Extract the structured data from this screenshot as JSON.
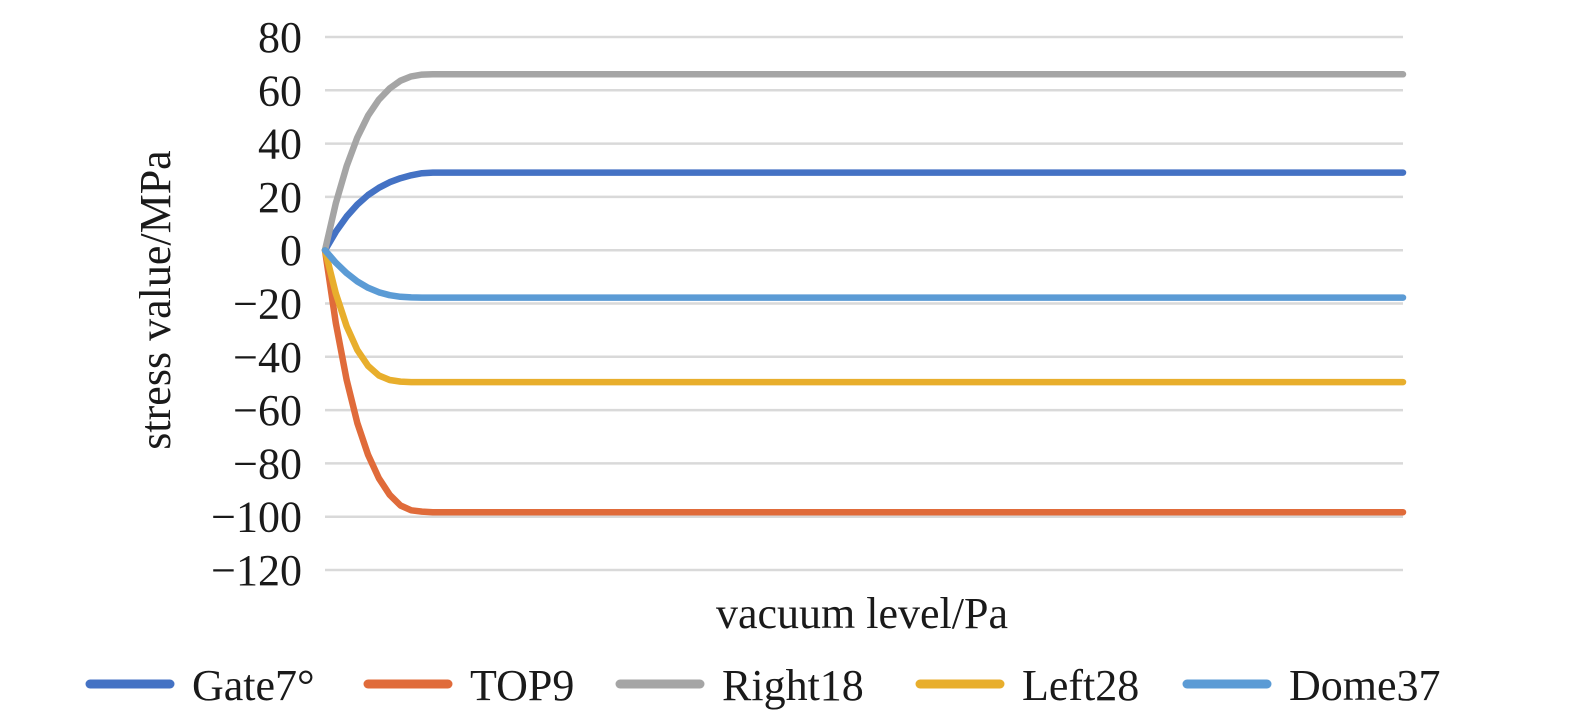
{
  "chart_data": {
    "type": "line",
    "title": "",
    "xlabel": "vacuum level/Pa",
    "ylabel": "stress value/MPa",
    "ylim": [
      -120,
      80
    ],
    "yticks": [
      80,
      60,
      40,
      20,
      0,
      -20,
      -40,
      -60,
      -80,
      -100,
      -120
    ],
    "ytick_labels": [
      "80",
      "60",
      "40",
      "20",
      "0",
      "−20",
      "−40",
      "−60",
      "−80",
      "−100",
      "−120"
    ],
    "grid": true,
    "legend_position": "bottom",
    "x": [
      0,
      1,
      2,
      3,
      4,
      5,
      6,
      7,
      8,
      9,
      10,
      11,
      12,
      13,
      14,
      15,
      16,
      17,
      18,
      19,
      20,
      21,
      22,
      23,
      24,
      25,
      26,
      27,
      28,
      29,
      30,
      31,
      32,
      33,
      34,
      35,
      36,
      37,
      38,
      39,
      40,
      41,
      42,
      43,
      44,
      45,
      46,
      47,
      48,
      49,
      50,
      51,
      52,
      53,
      54,
      55,
      56,
      57,
      58,
      59,
      60,
      61,
      62,
      63,
      64,
      65,
      66,
      67,
      68,
      69,
      70,
      71,
      72,
      73,
      74,
      75,
      76,
      77,
      78,
      79,
      80,
      81,
      82,
      83,
      84,
      85,
      86,
      87,
      88,
      89,
      90,
      91,
      92,
      93,
      94,
      95,
      96,
      97,
      98,
      99,
      100
    ],
    "series": [
      {
        "name": "Gate7°",
        "color": "#4472c4",
        "values": [
          0,
          6.9,
          12.6,
          17.1,
          20.7,
          23.4,
          25.5,
          27,
          28.1,
          28.9,
          29.1,
          29.1,
          29.1,
          29.1,
          29.1,
          29.1,
          29.1,
          29.1,
          29.1,
          29.1,
          29.1,
          29.1,
          29.1,
          29.1,
          29.1,
          29.1,
          29.1,
          29.1,
          29.1,
          29.1,
          29.1,
          29.1,
          29.1,
          29.1,
          29.1,
          29.1,
          29.1,
          29.1,
          29.1,
          29.1,
          29.1,
          29.1,
          29.1,
          29.1,
          29.1,
          29.1,
          29.1,
          29.1,
          29.1,
          29.1,
          29.1,
          29.1,
          29.1,
          29.1,
          29.1,
          29.1,
          29.1,
          29.1,
          29.1,
          29.1,
          29.1,
          29.1,
          29.1,
          29.1,
          29.1,
          29.1,
          29.1,
          29.1,
          29.1,
          29.1,
          29.1,
          29.1,
          29.1,
          29.1,
          29.1,
          29.1,
          29.1,
          29.1,
          29.1,
          29.1,
          29.1,
          29.1,
          29.1,
          29.1,
          29.1,
          29.1,
          29.1,
          29.1,
          29.1,
          29.1,
          29.1,
          29.1,
          29.1,
          29.1,
          29.1,
          29.1,
          29.1,
          29.1,
          29.1,
          29.1,
          29.1
        ]
      },
      {
        "name": "TOP9",
        "color": "#e06b3a",
        "values": [
          0,
          -27.3,
          -48.6,
          -64.8,
          -76.8,
          -85.6,
          -91.8,
          -95.8,
          -97.6,
          -98.1,
          -98.3,
          -98.3,
          -98.3,
          -98.3,
          -98.3,
          -98.3,
          -98.3,
          -98.3,
          -98.3,
          -98.3,
          -98.3,
          -98.3,
          -98.3,
          -98.3,
          -98.3,
          -98.3,
          -98.3,
          -98.3,
          -98.3,
          -98.3,
          -98.3,
          -98.3,
          -98.3,
          -98.3,
          -98.3,
          -98.3,
          -98.3,
          -98.3,
          -98.3,
          -98.3,
          -98.3,
          -98.3,
          -98.3,
          -98.3,
          -98.3,
          -98.3,
          -98.3,
          -98.3,
          -98.3,
          -98.3,
          -98.3,
          -98.3,
          -98.3,
          -98.3,
          -98.3,
          -98.3,
          -98.3,
          -98.3,
          -98.3,
          -98.3,
          -98.3,
          -98.3,
          -98.3,
          -98.3,
          -98.3,
          -98.3,
          -98.3,
          -98.3,
          -98.3,
          -98.3,
          -98.3,
          -98.3,
          -98.3,
          -98.3,
          -98.3,
          -98.3,
          -98.3,
          -98.3,
          -98.3,
          -98.3,
          -98.3,
          -98.3,
          -98.3,
          -98.3,
          -98.3,
          -98.3,
          -98.3,
          -98.3,
          -98.3,
          -98.3,
          -98.3,
          -98.3,
          -98.3,
          -98.3,
          -98.3,
          -98.3,
          -98.3,
          -98.3,
          -98.3,
          -98.3,
          -98.3
        ]
      },
      {
        "name": "Right18",
        "color": "#a5a5a5",
        "values": [
          0,
          17.6,
          31.5,
          42.3,
          50.5,
          56.5,
          60.7,
          63.6,
          65.2,
          65.9,
          66,
          66,
          66,
          66,
          66,
          66,
          66,
          66,
          66,
          66,
          66,
          66,
          66,
          66,
          66,
          66,
          66,
          66,
          66,
          66,
          66,
          66,
          66,
          66,
          66,
          66,
          66,
          66,
          66,
          66,
          66,
          66,
          66,
          66,
          66,
          66,
          66,
          66,
          66,
          66,
          66,
          66,
          66,
          66,
          66,
          66,
          66,
          66,
          66,
          66,
          66,
          66,
          66,
          66,
          66,
          66,
          66,
          66,
          66,
          66,
          66,
          66,
          66,
          66,
          66,
          66,
          66,
          66,
          66,
          66,
          66,
          66,
          66,
          66,
          66,
          66,
          66,
          66,
          66,
          66,
          66,
          66,
          66,
          66,
          66,
          66,
          66,
          66,
          66,
          66,
          66
        ]
      },
      {
        "name": "Left28",
        "color": "#e8ae2c",
        "values": [
          0,
          -16.2,
          -28.5,
          -37.4,
          -43.4,
          -47,
          -48.7,
          -49.3,
          -49.5,
          -49.5,
          -49.5,
          -49.5,
          -49.5,
          -49.5,
          -49.5,
          -49.5,
          -49.5,
          -49.5,
          -49.5,
          -49.5,
          -49.5,
          -49.5,
          -49.5,
          -49.5,
          -49.5,
          -49.5,
          -49.5,
          -49.5,
          -49.5,
          -49.5,
          -49.5,
          -49.5,
          -49.5,
          -49.5,
          -49.5,
          -49.5,
          -49.5,
          -49.5,
          -49.5,
          -49.5,
          -49.5,
          -49.5,
          -49.5,
          -49.5,
          -49.5,
          -49.5,
          -49.5,
          -49.5,
          -49.5,
          -49.5,
          -49.5,
          -49.5,
          -49.5,
          -49.5,
          -49.5,
          -49.5,
          -49.5,
          -49.5,
          -49.5,
          -49.5,
          -49.5,
          -49.5,
          -49.5,
          -49.5,
          -49.5,
          -49.5,
          -49.5,
          -49.5,
          -49.5,
          -49.5,
          -49.5,
          -49.5,
          -49.5,
          -49.5,
          -49.5,
          -49.5,
          -49.5,
          -49.5,
          -49.5,
          -49.5,
          -49.5,
          -49.5,
          -49.5,
          -49.5,
          -49.5,
          -49.5,
          -49.5,
          -49.5,
          -49.5,
          -49.5,
          -49.5,
          -49.5,
          -49.5,
          -49.5,
          -49.5,
          -49.5,
          -49.5,
          -49.5,
          -49.5,
          -49.5,
          -49.5
        ]
      },
      {
        "name": "Dome37",
        "color": "#5b9bd5",
        "values": [
          0,
          -4.7,
          -8.6,
          -11.7,
          -14.1,
          -15.8,
          -16.9,
          -17.5,
          -17.7,
          -17.8,
          -17.8,
          -17.8,
          -17.8,
          -17.8,
          -17.8,
          -17.8,
          -17.8,
          -17.8,
          -17.8,
          -17.8,
          -17.8,
          -17.8,
          -17.8,
          -17.8,
          -17.8,
          -17.8,
          -17.8,
          -17.8,
          -17.8,
          -17.8,
          -17.8,
          -17.8,
          -17.8,
          -17.8,
          -17.8,
          -17.8,
          -17.8,
          -17.8,
          -17.8,
          -17.8,
          -17.8,
          -17.8,
          -17.8,
          -17.8,
          -17.8,
          -17.8,
          -17.8,
          -17.8,
          -17.8,
          -17.8,
          -17.8,
          -17.8,
          -17.8,
          -17.8,
          -17.8,
          -17.8,
          -17.8,
          -17.8,
          -17.8,
          -17.8,
          -17.8,
          -17.8,
          -17.8,
          -17.8,
          -17.8,
          -17.8,
          -17.8,
          -17.8,
          -17.8,
          -17.8,
          -17.8,
          -17.8,
          -17.8,
          -17.8,
          -17.8,
          -17.8,
          -17.8,
          -17.8,
          -17.8,
          -17.8,
          -17.8,
          -17.8,
          -17.8,
          -17.8,
          -17.8,
          -17.8,
          -17.8,
          -17.8,
          -17.8,
          -17.8,
          -17.8,
          -17.8,
          -17.8,
          -17.8,
          -17.8,
          -17.8,
          -17.8,
          -17.8,
          -17.8,
          -17.8,
          -17.8
        ]
      }
    ]
  }
}
